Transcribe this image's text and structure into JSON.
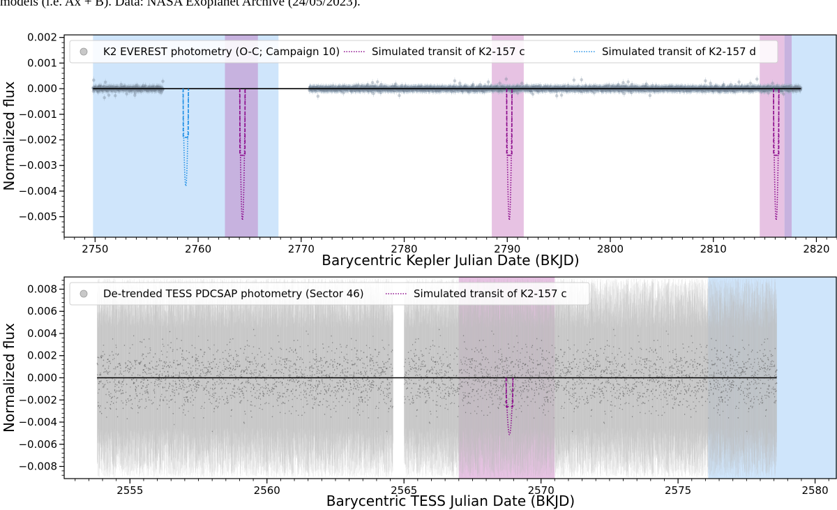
{
  "caption": "models (i.e. Ax + B). Data: NASA Exoplanet Archive (24/05/2023).",
  "colors": {
    "blue_region": "#cfe5fb",
    "pink_region": "#e7c2e3",
    "overlap_region": "#c7b2df",
    "planet_c": "#8b0a8b",
    "planet_d": "#1f8fe6",
    "model_line": "#000000",
    "k2_points": "#6f7f8f",
    "tess_points": "#9a9a9a"
  },
  "chart_data": [
    {
      "type": "scatter",
      "xlabel": "Barycentric Kepler Julian Date (BKJD)",
      "ylabel": "Normalized flux",
      "xlim": [
        2747,
        2822
      ],
      "ylim": [
        -0.0058,
        0.0021
      ],
      "xticks": [
        2750,
        2760,
        2770,
        2780,
        2790,
        2800,
        2810,
        2820
      ],
      "xtick_labels": [
        "2750",
        "2760",
        "2770",
        "2780",
        "2790",
        "2800",
        "2810",
        "2820"
      ],
      "yticks": [
        0.002,
        0.001,
        0.0,
        -0.001,
        -0.002,
        -0.003,
        -0.004,
        -0.005
      ],
      "ytick_labels": [
        "0.002",
        "0.001",
        "0.000",
        "−0.001",
        "−0.002",
        "−0.003",
        "−0.004",
        "−0.005"
      ],
      "legend_position": "top",
      "legend": [
        {
          "label": "K2 EVEREST photometry (O-C; Campaign 10)",
          "marker": "circle"
        },
        {
          "label": "Simulated transit of K2-157 c",
          "marker": "dotted-line",
          "color": "#8b0a8b"
        },
        {
          "label": "Simulated transit of K2-157 d",
          "marker": "dotted-line",
          "color": "#1f8fe6"
        }
      ],
      "photometry_segments": [
        [
          2749.8,
          2756.6
        ],
        [
          2770.8,
          2818.5
        ]
      ],
      "model_line": {
        "x_start": 2749.8,
        "x_end": 2818.5,
        "y": 0.0
      },
      "shaded_regions": [
        {
          "x0": 2749.8,
          "x1": 2767.8,
          "kind": "blue"
        },
        {
          "x0": 2762.6,
          "x1": 2765.8,
          "kind": "overlap"
        },
        {
          "x0": 2788.5,
          "x1": 2791.6,
          "kind": "pink"
        },
        {
          "x0": 2814.5,
          "x1": 2816.9,
          "kind": "pink"
        },
        {
          "x0": 2816.9,
          "x1": 2817.6,
          "kind": "overlap"
        },
        {
          "x0": 2817.6,
          "x1": 2822,
          "kind": "blue"
        }
      ],
      "transits": [
        {
          "planet": "d",
          "x": 2758.8,
          "dashed_depth": -0.0019,
          "dotted_depth": -0.004
        },
        {
          "planet": "c",
          "x": 2764.3,
          "dashed_depth": -0.0026,
          "dotted_depth": -0.0054
        },
        {
          "planet": "c",
          "x": 2790.2,
          "dashed_depth": -0.0026,
          "dotted_depth": -0.0054
        },
        {
          "planet": "c",
          "x": 2816.1,
          "dashed_depth": -0.0026,
          "dotted_depth": -0.0054
        }
      ]
    },
    {
      "type": "scatter",
      "xlabel": "Barycentric TESS Julian Date (BKJD)",
      "ylabel": "Normalized flux",
      "xlim": [
        2552.6,
        2580.8
      ],
      "ylim": [
        -0.0091,
        0.0091
      ],
      "xticks": [
        2555,
        2560,
        2565,
        2570,
        2575,
        2580
      ],
      "xtick_labels": [
        "2555",
        "2560",
        "2565",
        "2570",
        "2575",
        "2580"
      ],
      "yticks": [
        0.008,
        0.006,
        0.004,
        0.002,
        0.0,
        -0.002,
        -0.004,
        -0.006,
        -0.008
      ],
      "ytick_labels": [
        "0.008",
        "0.006",
        "0.004",
        "0.002",
        "0.000",
        "−0.002",
        "−0.004",
        "−0.006",
        "−0.008"
      ],
      "legend_position": "top-left",
      "legend": [
        {
          "label": "De-trended TESS PDCSAP photometry (Sector 46)",
          "marker": "circle"
        },
        {
          "label": "Simulated transit of K2-157 c",
          "marker": "dotted-line",
          "color": "#8b0a8b"
        }
      ],
      "photometry_segments": [
        [
          2553.8,
          2564.6
        ],
        [
          2565.0,
          2578.6
        ]
      ],
      "model_line": {
        "x_start": 2553.8,
        "x_end": 2578.6,
        "y": 0.0
      },
      "shaded_regions": [
        {
          "x0": 2567.0,
          "x1": 2570.5,
          "kind": "pink"
        },
        {
          "x0": 2576.1,
          "x1": 2580.8,
          "kind": "blue"
        }
      ],
      "transits": [
        {
          "planet": "c",
          "x": 2568.85,
          "dashed_depth": -0.0026,
          "dotted_depth": -0.0054
        }
      ]
    }
  ]
}
